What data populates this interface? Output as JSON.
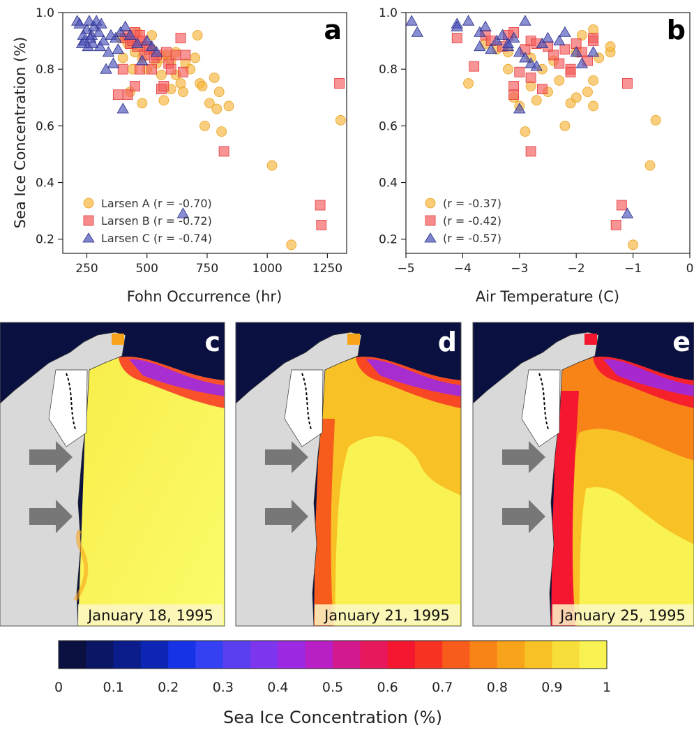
{
  "chart_data": [
    {
      "panel": "a",
      "type": "scatter",
      "xlabel": "Fohn Occurrence (hr)",
      "ylabel": "Sea Ice Concentration (%)",
      "xlim": [
        150,
        1330
      ],
      "ylim": [
        0.15,
        1.0
      ],
      "xticks": [
        250,
        500,
        750,
        1000,
        1250
      ],
      "yticks": [
        0.2,
        0.4,
        0.6,
        0.8,
        1.0
      ],
      "ytick_labels": [
        "0.2",
        "0.4",
        "0.6",
        "0.8",
        "1.0"
      ],
      "legend_position": "bottom-left",
      "series": [
        {
          "name": "Larsen A (r = -0.70)",
          "marker": "circle",
          "color": "#f6b63a",
          "points": [
            [
              390,
              0.91
            ],
            [
              420,
              0.89
            ],
            [
              450,
              0.86
            ],
            [
              470,
              0.88
            ],
            [
              480,
              0.84
            ],
            [
              500,
              0.8
            ],
            [
              520,
              0.87
            ],
            [
              540,
              0.82
            ],
            [
              560,
              0.78
            ],
            [
              580,
              0.85
            ],
            [
              600,
              0.83
            ],
            [
              620,
              0.78
            ],
            [
              640,
              0.75
            ],
            [
              650,
              0.72
            ],
            [
              660,
              0.82
            ],
            [
              680,
              0.8
            ],
            [
              700,
              0.84
            ],
            [
              710,
              0.92
            ],
            [
              720,
              0.75
            ],
            [
              730,
              0.74
            ],
            [
              740,
              0.6
            ],
            [
              760,
              0.68
            ],
            [
              780,
              0.77
            ],
            [
              790,
              0.66
            ],
            [
              800,
              0.72
            ],
            [
              810,
              0.58
            ],
            [
              840,
              0.67
            ],
            [
              1020,
              0.46
            ],
            [
              1100,
              0.18
            ],
            [
              1305,
              0.62
            ],
            [
              430,
              0.72
            ],
            [
              480,
              0.68
            ],
            [
              570,
              0.69
            ],
            [
              600,
              0.73
            ],
            [
              520,
              0.92
            ],
            [
              440,
              0.8
            ],
            [
              400,
              0.84
            ],
            [
              460,
              0.93
            ],
            [
              620,
              0.86
            ],
            [
              560,
              0.84
            ]
          ]
        },
        {
          "name": "Larsen B (r = -0.72)",
          "marker": "square",
          "color": "#f45a5a",
          "points": [
            [
              380,
              0.71
            ],
            [
              400,
              0.8
            ],
            [
              410,
              0.91
            ],
            [
              420,
              0.92
            ],
            [
              430,
              0.89
            ],
            [
              440,
              0.9
            ],
            [
              450,
              0.93
            ],
            [
              460,
              0.88
            ],
            [
              470,
              0.92
            ],
            [
              480,
              0.9
            ],
            [
              490,
              0.85
            ],
            [
              500,
              0.88
            ],
            [
              510,
              0.87
            ],
            [
              520,
              0.8
            ],
            [
              530,
              0.84
            ],
            [
              540,
              0.85
            ],
            [
              560,
              0.73
            ],
            [
              570,
              0.74
            ],
            [
              580,
              0.86
            ],
            [
              590,
              0.82
            ],
            [
              600,
              0.8
            ],
            [
              620,
              0.85
            ],
            [
              640,
              0.91
            ],
            [
              650,
              0.79
            ],
            [
              660,
              0.85
            ],
            [
              820,
              0.51
            ],
            [
              1220,
              0.32
            ],
            [
              1225,
              0.25
            ],
            [
              1300,
              0.75
            ],
            [
              420,
              0.71
            ],
            [
              450,
              0.74
            ],
            [
              470,
              0.8
            ]
          ]
        },
        {
          "name": "Larsen C (r = -0.74)",
          "marker": "triangle",
          "color": "#4a50b8",
          "points": [
            [
              210,
              0.97
            ],
            [
              220,
              0.96
            ],
            [
              230,
              0.89
            ],
            [
              240,
              0.9
            ],
            [
              250,
              0.94
            ],
            [
              255,
              0.88
            ],
            [
              260,
              0.97
            ],
            [
              270,
              0.92
            ],
            [
              275,
              0.89
            ],
            [
              280,
              0.95
            ],
            [
              290,
              0.97
            ],
            [
              300,
              0.93
            ],
            [
              305,
              0.88
            ],
            [
              310,
              0.96
            ],
            [
              320,
              0.9
            ],
            [
              330,
              0.8
            ],
            [
              340,
              0.86
            ],
            [
              350,
              0.92
            ],
            [
              360,
              0.82
            ],
            [
              370,
              0.91
            ],
            [
              380,
              0.87
            ],
            [
              390,
              0.93
            ],
            [
              400,
              0.66
            ],
            [
              410,
              0.95
            ],
            [
              430,
              0.92
            ],
            [
              460,
              0.89
            ],
            [
              480,
              0.83
            ],
            [
              500,
              0.9
            ],
            [
              520,
              0.88
            ],
            [
              540,
              0.86
            ],
            [
              650,
              0.29
            ],
            [
              235,
              0.92
            ],
            [
              265,
              0.91
            ]
          ]
        }
      ]
    },
    {
      "panel": "b",
      "type": "scatter",
      "xlabel": "Air Temperature (C)",
      "ylabel": "",
      "xlim": [
        -5.0,
        0.0
      ],
      "ylim": [
        0.15,
        1.0
      ],
      "xticks": [
        -5,
        -4,
        -3,
        -2,
        -1,
        0
      ],
      "xtick_labels": [
        "−5",
        "−4",
        "−3",
        "−2",
        "−1",
        "0"
      ],
      "yticks": [
        0.2,
        0.4,
        0.6,
        0.8,
        1.0
      ],
      "ytick_labels": [
        "0.2",
        "0.4",
        "0.6",
        "0.8",
        "1.0"
      ],
      "legend_position": "bottom-left",
      "series": [
        {
          "name": "(r = -0.37)",
          "marker": "circle",
          "color": "#f6b63a",
          "points": [
            [
              -3.9,
              0.75
            ],
            [
              -3.6,
              0.89
            ],
            [
              -3.4,
              0.87
            ],
            [
              -3.2,
              0.86
            ],
            [
              -3.1,
              0.7
            ],
            [
              -3.0,
              0.67
            ],
            [
              -2.9,
              0.58
            ],
            [
              -2.8,
              0.74
            ],
            [
              -2.7,
              0.69
            ],
            [
              -2.6,
              0.8
            ],
            [
              -2.5,
              0.72
            ],
            [
              -2.4,
              0.83
            ],
            [
              -2.3,
              0.76
            ],
            [
              -2.2,
              0.6
            ],
            [
              -2.1,
              0.68
            ],
            [
              -2.0,
              0.7
            ],
            [
              -1.9,
              0.92
            ],
            [
              -1.8,
              0.72
            ],
            [
              -1.7,
              0.67
            ],
            [
              -1.7,
              0.76
            ],
            [
              -1.6,
              0.84
            ],
            [
              -1.4,
              0.86
            ],
            [
              -1.4,
              0.88
            ],
            [
              -1.0,
              0.18
            ],
            [
              -0.7,
              0.46
            ],
            [
              -0.6,
              0.62
            ],
            [
              -1.7,
              0.94
            ],
            [
              -2.8,
              0.84
            ],
            [
              -3.2,
              0.8
            ],
            [
              -2.0,
              0.86
            ]
          ]
        },
        {
          "name": "(r = -0.42)",
          "marker": "square",
          "color": "#f45a5a",
          "points": [
            [
              -4.1,
              0.91
            ],
            [
              -3.8,
              0.81
            ],
            [
              -3.6,
              0.92
            ],
            [
              -3.5,
              0.9
            ],
            [
              -3.3,
              0.88
            ],
            [
              -3.2,
              0.92
            ],
            [
              -3.1,
              0.74
            ],
            [
              -3.1,
              0.71
            ],
            [
              -3.0,
              0.79
            ],
            [
              -2.9,
              0.87
            ],
            [
              -2.8,
              0.9
            ],
            [
              -2.8,
              0.51
            ],
            [
              -2.7,
              0.89
            ],
            [
              -2.6,
              0.73
            ],
            [
              -2.5,
              0.88
            ],
            [
              -2.4,
              0.85
            ],
            [
              -2.3,
              0.82
            ],
            [
              -2.2,
              0.87
            ],
            [
              -2.1,
              0.8
            ],
            [
              -2.1,
              0.79
            ],
            [
              -2.0,
              0.89
            ],
            [
              -1.9,
              0.86
            ],
            [
              -1.8,
              0.83
            ],
            [
              -1.7,
              0.91
            ],
            [
              -1.7,
              0.9
            ],
            [
              -1.3,
              0.25
            ],
            [
              -1.2,
              0.32
            ],
            [
              -1.1,
              0.75
            ],
            [
              -3.1,
              0.93
            ],
            [
              -2.8,
              0.77
            ]
          ]
        },
        {
          "name": "(r = -0.57)",
          "marker": "triangle",
          "color": "#4a50b8",
          "points": [
            [
              -4.9,
              0.97
            ],
            [
              -4.8,
              0.93
            ],
            [
              -4.1,
              0.96
            ],
            [
              -4.1,
              0.95
            ],
            [
              -3.9,
              0.97
            ],
            [
              -3.7,
              0.93
            ],
            [
              -3.7,
              0.88
            ],
            [
              -3.6,
              0.95
            ],
            [
              -3.5,
              0.87
            ],
            [
              -3.4,
              0.9
            ],
            [
              -3.3,
              0.92
            ],
            [
              -3.2,
              0.88
            ],
            [
              -3.1,
              0.91
            ],
            [
              -3.0,
              0.86
            ],
            [
              -3.0,
              0.66
            ],
            [
              -2.9,
              0.97
            ],
            [
              -2.8,
              0.82
            ],
            [
              -2.7,
              0.81
            ],
            [
              -2.6,
              0.89
            ],
            [
              -2.5,
              0.91
            ],
            [
              -2.3,
              0.9
            ],
            [
              -2.2,
              0.93
            ],
            [
              -2.0,
              0.86
            ],
            [
              -1.9,
              0.82
            ],
            [
              -1.7,
              0.86
            ],
            [
              -1.1,
              0.29
            ],
            [
              -3.2,
              0.89
            ],
            [
              -2.9,
              0.84
            ]
          ]
        }
      ]
    }
  ],
  "panel_letters": {
    "a": "a",
    "b": "b",
    "c": "c",
    "d": "d",
    "e": "e"
  },
  "maps": [
    {
      "panel": "c",
      "date": "January 18, 1995"
    },
    {
      "panel": "d",
      "date": "January 21, 1995"
    },
    {
      "panel": "e",
      "date": "January 25, 1995"
    }
  ],
  "colorbar": {
    "label": "Sea Ice Concentration (%)",
    "tick_labels": [
      "0",
      "0.1",
      "0.2",
      "0.3",
      "0.4",
      "0.5",
      "0.6",
      "0.7",
      "0.8",
      "0.9",
      "1"
    ],
    "colors": [
      "#0a1140",
      "#0b1665",
      "#0b1d8a",
      "#0c26b3",
      "#1733e6",
      "#3440f2",
      "#5a3ff0",
      "#7e35ee",
      "#9d2ae2",
      "#b81fc4",
      "#d21a8e",
      "#e8185c",
      "#f4172f",
      "#f83323",
      "#f85c1c",
      "#f88418",
      "#f8a41a",
      "#f8c226",
      "#f8de3a",
      "#f8f352"
    ]
  }
}
